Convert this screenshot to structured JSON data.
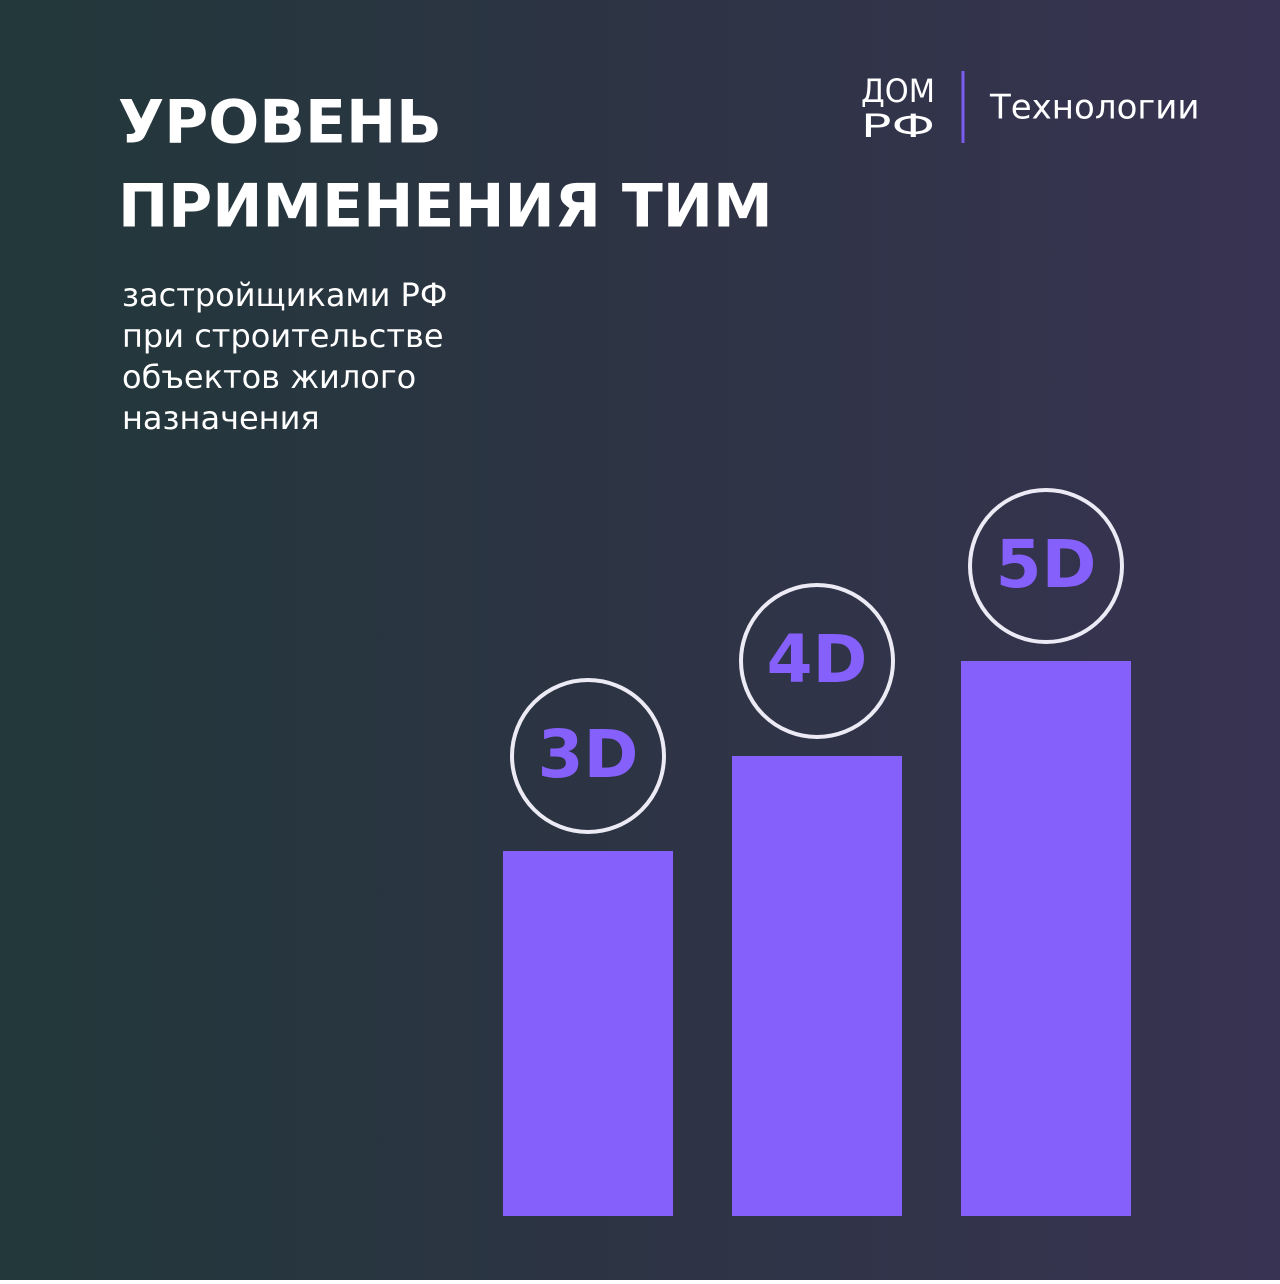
{
  "header": {
    "title_lines": [
      "УРОВЕНЬ",
      "ПРИМЕНЕНИЯ ТИМ"
    ],
    "subtitle_lines": [
      "застройщиками РФ",
      "при строительстве",
      "объектов жилого",
      "назначения"
    ]
  },
  "logo": {
    "mark_top": "ДОМ",
    "mark_bottom": "РФ",
    "section": "Технологии"
  },
  "levels": [
    {
      "label": "3D"
    },
    {
      "label": "4D"
    },
    {
      "label": "5D"
    }
  ]
}
